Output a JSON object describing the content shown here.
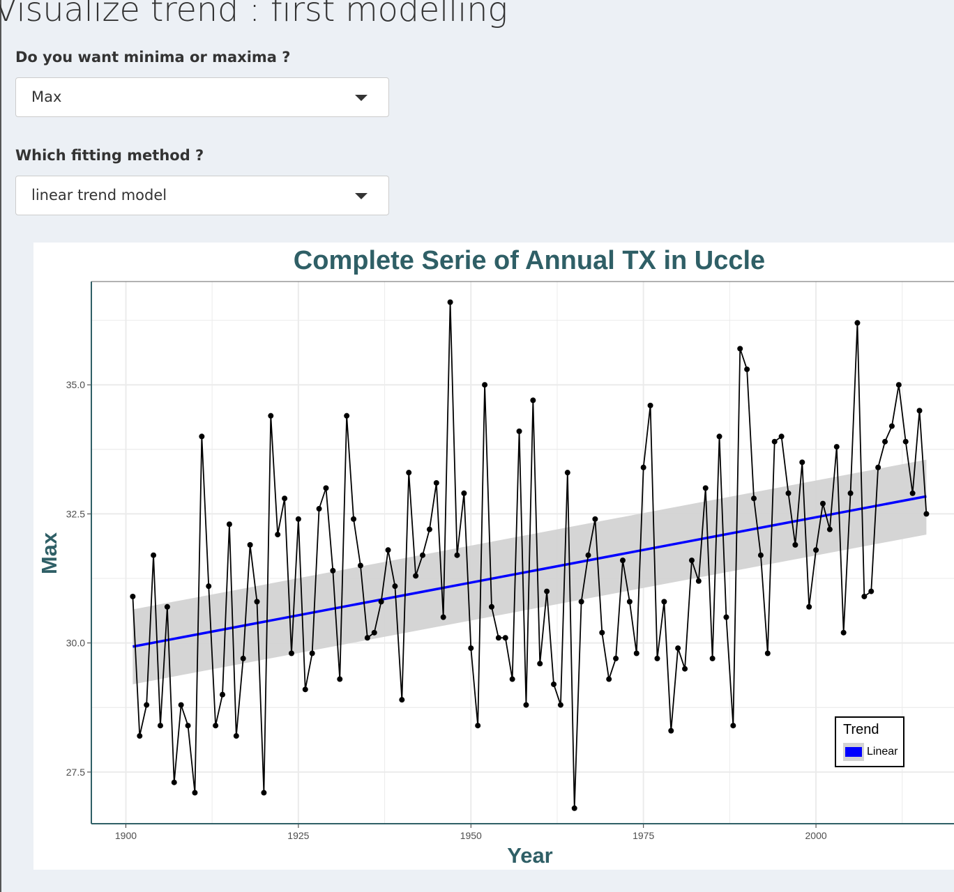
{
  "page": {
    "title": "Visualize trend : first modelling"
  },
  "controls": {
    "extreme": {
      "label": "Do you want minima or maxima ?",
      "value": "Max"
    },
    "method": {
      "label": "Which fitting method ?",
      "value": "linear trend model"
    }
  },
  "colors": {
    "title": "#2f5f66",
    "series": "#000000",
    "trend": "#0000ff",
    "band": "#d3d3d3",
    "grid": "#ebebeb",
    "axis": "#2f5f66"
  },
  "chart_data": {
    "type": "line",
    "title": "Complete Serie of Annual TX in Uccle",
    "xlabel": "Year",
    "ylabel": "Max",
    "xlim": [
      1895,
      2020
    ],
    "ylim": [
      26.5,
      37.0
    ],
    "xticks": [
      1900,
      1925,
      1950,
      1975,
      2000
    ],
    "yticks": [
      27.5,
      30.0,
      32.5,
      35.0
    ],
    "xtick_labels": [
      "1900",
      "1925",
      "1950",
      "1975",
      "2000"
    ],
    "ytick_labels": [
      "27.5",
      "30.0",
      "32.5",
      "35.0"
    ],
    "grid": true,
    "legend": {
      "title": "Trend",
      "position": "bottom-right",
      "entries": [
        "Linear"
      ]
    },
    "series": [
      {
        "x": [
          1901,
          1902,
          1903,
          1904,
          1905,
          1906,
          1907,
          1908,
          1909,
          1910,
          1911,
          1912,
          1913,
          1914,
          1915,
          1916,
          1917,
          1918,
          1919,
          1920,
          1921,
          1922,
          1923,
          1924,
          1925,
          1926,
          1927,
          1928,
          1929,
          1930,
          1931,
          1932,
          1933,
          1934,
          1935,
          1936,
          1937,
          1938,
          1939,
          1940,
          1941,
          1942,
          1943,
          1944,
          1945,
          1946,
          1947,
          1948,
          1949,
          1950,
          1951,
          1952,
          1953,
          1954,
          1955,
          1956,
          1957,
          1958,
          1959,
          1960,
          1961,
          1962,
          1963,
          1964,
          1965,
          1966,
          1967,
          1968,
          1969,
          1970,
          1971,
          1972,
          1973,
          1974,
          1975,
          1976,
          1977,
          1978,
          1979,
          1980,
          1981,
          1982,
          1983,
          1984,
          1985,
          1986,
          1987,
          1988,
          1989,
          1990,
          1991,
          1992,
          1993,
          1994,
          1995,
          1996,
          1997,
          1998,
          1999,
          2000,
          2001,
          2002,
          2003,
          2004,
          2005,
          2006,
          2007,
          2008,
          2009,
          2010,
          2011,
          2012,
          2013,
          2014,
          2015,
          2016
        ],
        "values": [
          30.9,
          28.2,
          28.8,
          31.7,
          28.4,
          30.7,
          27.3,
          28.8,
          28.4,
          27.1,
          34.0,
          31.1,
          28.4,
          29.0,
          32.3,
          28.2,
          29.7,
          31.9,
          30.8,
          27.1,
          34.4,
          32.1,
          32.8,
          29.8,
          32.4,
          29.1,
          29.8,
          32.6,
          33.0,
          31.4,
          29.3,
          34.4,
          32.4,
          31.5,
          30.1,
          30.2,
          30.8,
          31.8,
          31.1,
          28.9,
          33.3,
          31.3,
          31.7,
          32.2,
          33.1,
          30.5,
          36.6,
          31.7,
          32.9,
          29.9,
          28.4,
          35.0,
          30.7,
          30.1,
          30.1,
          29.3,
          34.1,
          28.8,
          34.7,
          29.6,
          31.0,
          29.2,
          28.8,
          33.3,
          26.8,
          30.8,
          31.7,
          32.4,
          30.2,
          29.3,
          29.7,
          31.6,
          30.8,
          29.8,
          33.4,
          34.6,
          29.7,
          30.8,
          28.3,
          29.9,
          29.5,
          31.6,
          31.2,
          33.0,
          29.7,
          34.0,
          30.5,
          28.4,
          35.7,
          35.3,
          32.8,
          31.7,
          29.8,
          33.9,
          34.0,
          32.9,
          31.9,
          33.5,
          30.7,
          31.8,
          32.7,
          32.2,
          33.8,
          30.2,
          32.9,
          36.2,
          30.9,
          31.0,
          33.4,
          33.9,
          34.2,
          35.0,
          33.9,
          32.9,
          34.5,
          32.5
        ]
      },
      {
        "name": "Linear",
        "x": [
          1901,
          2016
        ],
        "values": [
          29.93,
          32.84
        ],
        "band_lower": [
          29.2,
          32.1
        ],
        "band_upper": [
          30.65,
          33.55
        ]
      }
    ]
  }
}
